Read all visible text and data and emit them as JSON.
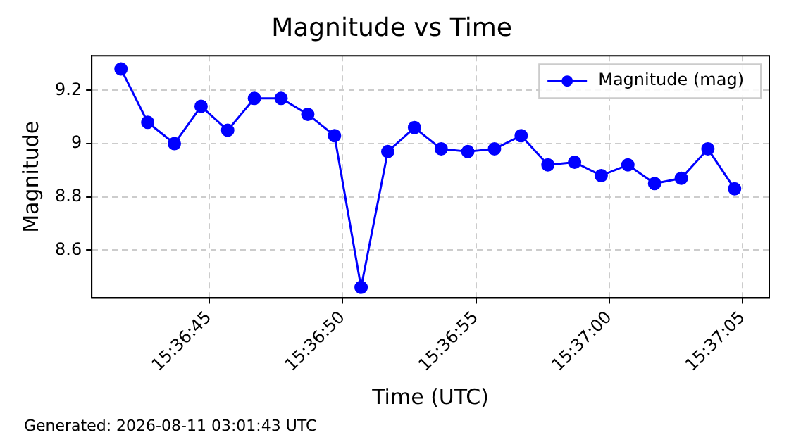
{
  "chart_data": {
    "type": "line",
    "title": "Magnitude vs Time",
    "xlabel": "Time (UTC)",
    "ylabel": "Magnitude",
    "x": [
      15.611583,
      15.611861,
      15.612139,
      15.612417,
      15.612694,
      15.612972,
      15.61325,
      15.613528,
      15.613806,
      15.614083,
      15.614361,
      15.614639,
      15.614917,
      15.615194,
      15.615472,
      15.61575,
      15.616028,
      15.616306,
      15.616583,
      15.616861,
      15.617139,
      15.617417,
      15.617694,
      15.617972
    ],
    "series": [
      {
        "name": "Magnitude (mag)",
        "color": "#0000ff",
        "values": [
          9.28,
          9.08,
          9.0,
          9.14,
          9.05,
          9.17,
          9.17,
          9.11,
          9.03,
          8.46,
          8.97,
          9.06,
          8.98,
          8.97,
          8.98,
          9.03,
          8.92,
          8.93,
          8.88,
          8.92,
          8.85,
          8.87,
          8.98,
          8.83
        ]
      }
    ],
    "xlim": [
      15.611278,
      15.618333
    ],
    "xticks": [
      {
        "value": 15.6125,
        "label": "15:36:45"
      },
      {
        "value": 15.613889,
        "label": "15:36:50"
      },
      {
        "value": 15.615278,
        "label": "15:36:55"
      },
      {
        "value": 15.616667,
        "label": "15:37:00"
      },
      {
        "value": 15.618056,
        "label": "15:37:05"
      }
    ],
    "ylim": [
      8.42,
      9.33
    ],
    "yticks": [
      8.6,
      8.8,
      9.0,
      9.2
    ],
    "grid": true,
    "legend": "top right",
    "marker": "circle",
    "line_style": "solid",
    "annotations": [
      "Generated: 2026-08-11 03:01:43 UTC"
    ]
  }
}
